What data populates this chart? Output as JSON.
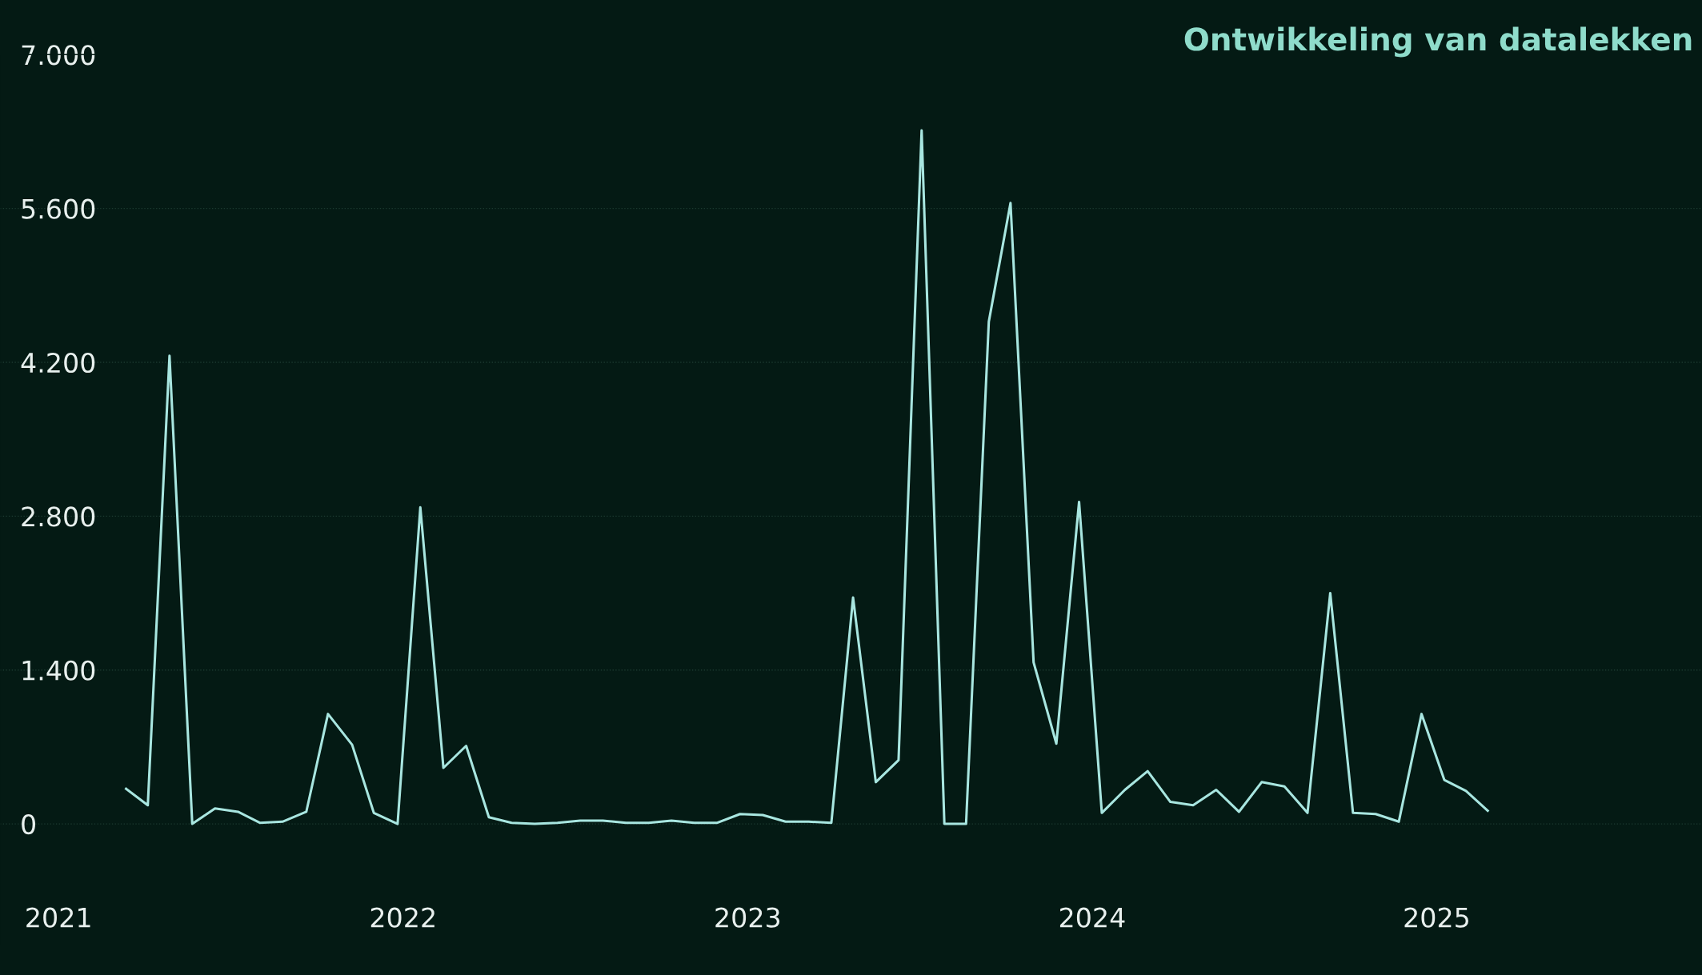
{
  "chart_data": {
    "type": "line",
    "title": "Ontwikkeling van datalekken",
    "x": [
      2021.196,
      2021.259,
      2021.322,
      2021.388,
      2021.454,
      2021.521,
      2021.584,
      2021.65,
      2021.719,
      2021.782,
      2021.852,
      2021.915,
      2021.984,
      2022.05,
      2022.117,
      2022.183,
      2022.249,
      2022.315,
      2022.382,
      2022.448,
      2022.514,
      2022.58,
      2022.647,
      2022.713,
      2022.779,
      2022.845,
      2022.912,
      2022.978,
      2023.044,
      2023.11,
      2023.177,
      2023.243,
      2023.306,
      2023.372,
      2023.438,
      2023.505,
      2023.571,
      2023.634,
      2023.7,
      2023.763,
      2023.83,
      2023.896,
      2023.962,
      2024.028,
      2024.095,
      2024.161,
      2024.227,
      2024.293,
      2024.36,
      2024.426,
      2024.492,
      2024.558,
      2024.625,
      2024.691,
      2024.757,
      2024.823,
      2024.89,
      2024.956,
      2025.022,
      2025.085,
      2025.148
    ],
    "series": [
      {
        "color": "#a8e6e0",
        "values": [
          320,
          170,
          4260,
          0,
          140,
          110,
          10,
          20,
          110,
          1000,
          720,
          100,
          0,
          2880,
          510,
          710,
          60,
          10,
          0,
          10,
          30,
          30,
          10,
          10,
          30,
          10,
          10,
          90,
          80,
          20,
          20,
          10,
          2060,
          380,
          580,
          6310,
          0,
          0,
          4570,
          5650,
          1470,
          730,
          2930,
          100,
          310,
          480,
          200,
          170,
          310,
          110,
          380,
          340,
          100,
          2100,
          100,
          90,
          20,
          1000,
          400,
          300,
          120
        ]
      }
    ],
    "xlim": [
      2020.83,
      2025.77
    ],
    "xticks": [
      2021,
      2022,
      2023,
      2024,
      2025
    ],
    "ylim": [
      -1100,
      7000
    ],
    "yticks": [
      0,
      {
        "value": 1400,
        "label": "1.400"
      },
      {
        "value": 2800,
        "label": "2.800"
      },
      {
        "value": 4200,
        "label": "4.200"
      },
      {
        "value": 5600,
        "label": "5.600"
      },
      {
        "value": 7000,
        "label": "7.000"
      }
    ],
    "grid": "y",
    "line_style": "solid",
    "marker": "none"
  }
}
